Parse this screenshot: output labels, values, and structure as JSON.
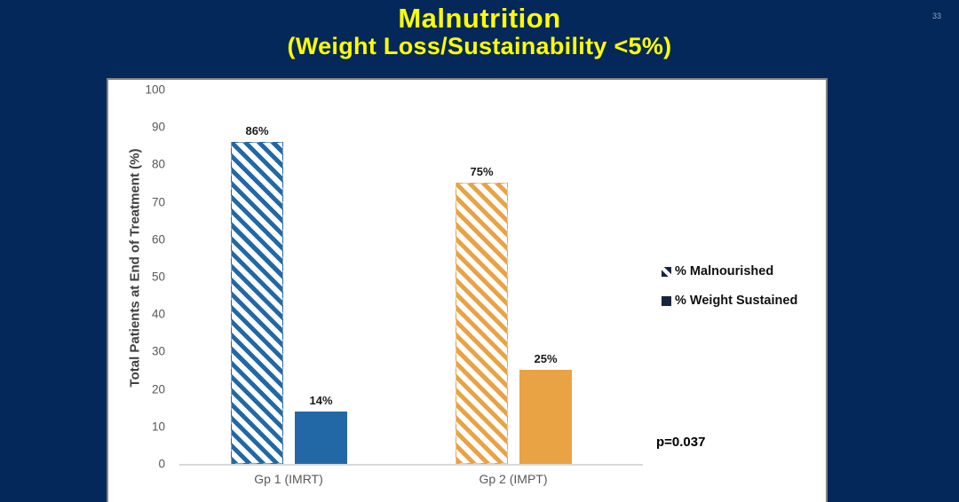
{
  "slide": {
    "title": "Malnutrition",
    "subtitle": "(Weight Loss/Sustainability <5%)",
    "page_number": "33",
    "background_color": "#04285A",
    "title_color": "#FFFF00"
  },
  "chart_data": {
    "type": "bar",
    "categories": [
      "Gp 1 (IMRT)",
      "Gp 2 (IMPT)"
    ],
    "series": [
      {
        "name": "% Malnourished",
        "style": "hatched",
        "values": [
          86,
          75
        ]
      },
      {
        "name": "% Weight Sustained",
        "style": "solid",
        "values": [
          14,
          25
        ]
      }
    ],
    "group_colors": [
      "#2368A6",
      "#E9A244"
    ],
    "legend_icon_color": "#17253D",
    "value_label_format": "percent",
    "title": "",
    "xlabel": "",
    "ylabel": "Total Patients at End of Treatment (%)",
    "ylim": [
      0,
      100
    ],
    "yticks": [
      0,
      10,
      20,
      30,
      40,
      50,
      60,
      70,
      80,
      90,
      100
    ],
    "grid": false,
    "legend_position": "right",
    "annotation": "p=0.037"
  }
}
